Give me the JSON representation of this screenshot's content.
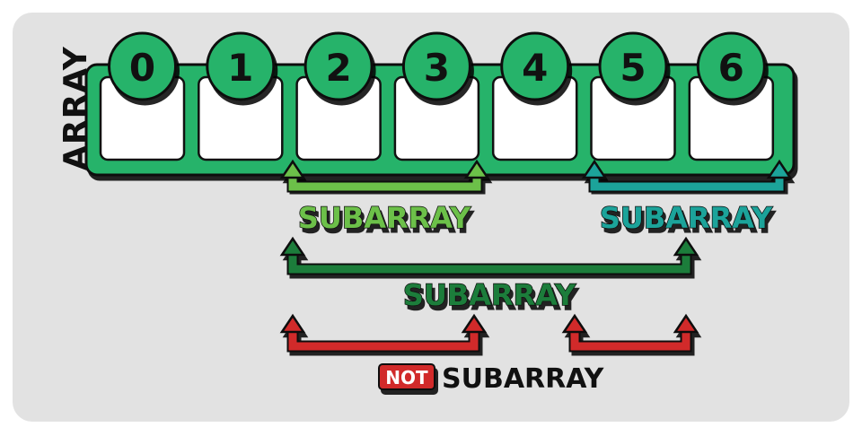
{
  "array_label": "ARRAY",
  "indices": [
    "0",
    "1",
    "2",
    "3",
    "4",
    "5",
    "6"
  ],
  "subarrays": [
    {
      "label": "SUBARRAY",
      "from": 2,
      "to": 3,
      "color": "#6cc04a"
    },
    {
      "label": "SUBARRAY",
      "from": 5,
      "to": 6,
      "color": "#1aa39a"
    },
    {
      "label": "SUBARRAY",
      "from": 2,
      "to": 5,
      "color": "#1e7d3a"
    }
  ],
  "not_subarray": {
    "badge": "NOT",
    "label": "SUBARRAY",
    "color": "#d12b2b",
    "ranges": [
      {
        "from": 2,
        "to": 3
      },
      {
        "from": 4,
        "to": 5
      }
    ]
  },
  "colors": {
    "array_green": "#27b36a",
    "background": "#e2e2e2",
    "label_dark": "#111111"
  }
}
